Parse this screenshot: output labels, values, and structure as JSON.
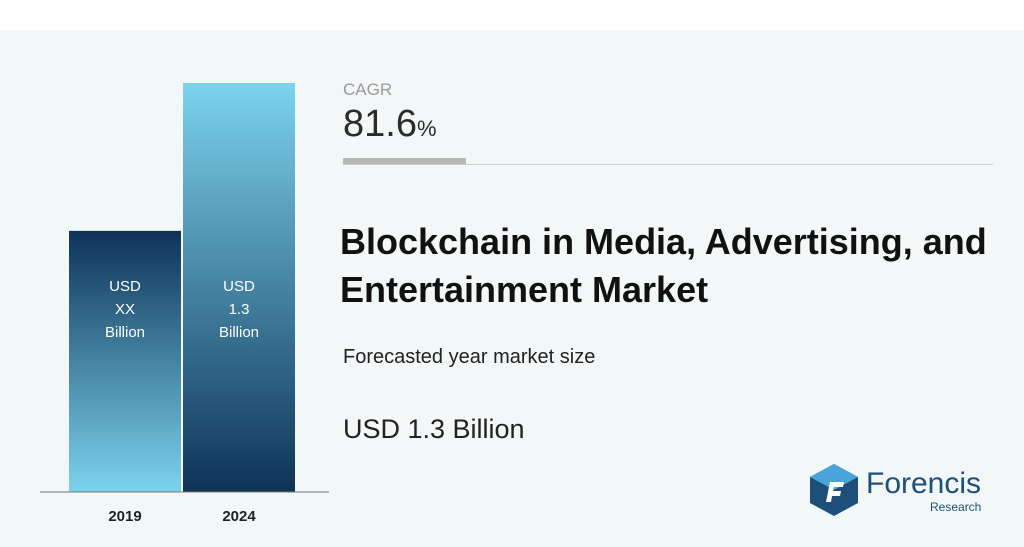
{
  "chart_data": {
    "type": "bar",
    "categories": [
      "2019",
      "2024"
    ],
    "values": [
      0.83,
      1.3
    ],
    "ylim": [
      0,
      1.3
    ],
    "bar_labels": [
      "USD\nXX\nBillion",
      "USD\n1.3\nBillion"
    ],
    "colors": {
      "bar_2019_top": "#0e3356",
      "bar_2019_bottom": "#7cd3ee",
      "bar_2024_top": "#7cd3ee",
      "bar_2024_bottom": "#0e3356"
    },
    "grid": false
  },
  "cagr": {
    "label": "CAGR",
    "value": "81.6",
    "unit": "%"
  },
  "title": "Blockchain in Media, Advertising, and Entertainment Market",
  "subtitle": "Forecasted year market size",
  "forecast_value": "USD 1.3 Billion",
  "logo": {
    "name": "Forencis",
    "sub": "Research",
    "icon": "forencis-logo-icon",
    "colors": {
      "primary": "#1e4f7a",
      "accent": "#4aa3d9"
    }
  }
}
